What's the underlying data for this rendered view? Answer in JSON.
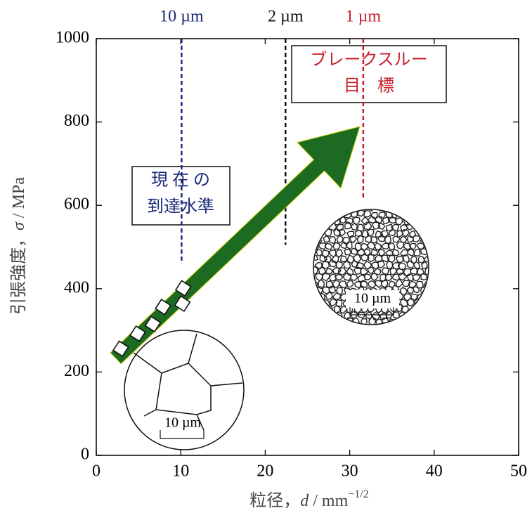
{
  "chart_data": {
    "type": "scatter",
    "xlabel": {
      "text": "粒径，",
      "symbol": "d",
      "unit": " / mm",
      "exponent": "−1/2"
    },
    "ylabel": {
      "text": "引張強度，",
      "symbol": "σ",
      "unit": " / MPa"
    },
    "xlim": [
      0,
      50
    ],
    "xticks": [
      0,
      10,
      20,
      30,
      40,
      50
    ],
    "ylim": [
      0,
      1000
    ],
    "yticks": [
      0,
      200,
      400,
      600,
      800,
      1000
    ],
    "x": [
      2.9,
      4.9,
      6.7,
      7.9,
      10.2,
      10.3
    ],
    "y": [
      256,
      292,
      315,
      356,
      364,
      401
    ],
    "reference_lines": [
      {
        "label": "10 µm",
        "x": 10.1,
        "ymin": 460,
        "color": "#1b2a7a"
      },
      {
        "label": "2 µm",
        "x": 22.4,
        "ymin": 505,
        "color": "#111111"
      },
      {
        "label": "1 µm",
        "x": 31.6,
        "ymin": 617,
        "color": "#c8202a"
      }
    ],
    "arrow": {
      "from": [
        2.3,
        233
      ],
      "to": [
        31.2,
        789
      ],
      "color": "#1d6b22"
    },
    "annotations": [
      {
        "lines": [
          "ブレークスルー",
          "目　標"
        ],
        "color": "#c8202a"
      },
      {
        "lines": [
          "現 在 の",
          "到達水準"
        ],
        "color": "#1b2a7a"
      }
    ],
    "insets": [
      {
        "scale_label": "10 µm"
      },
      {
        "scale_label": "10 µm"
      }
    ]
  }
}
